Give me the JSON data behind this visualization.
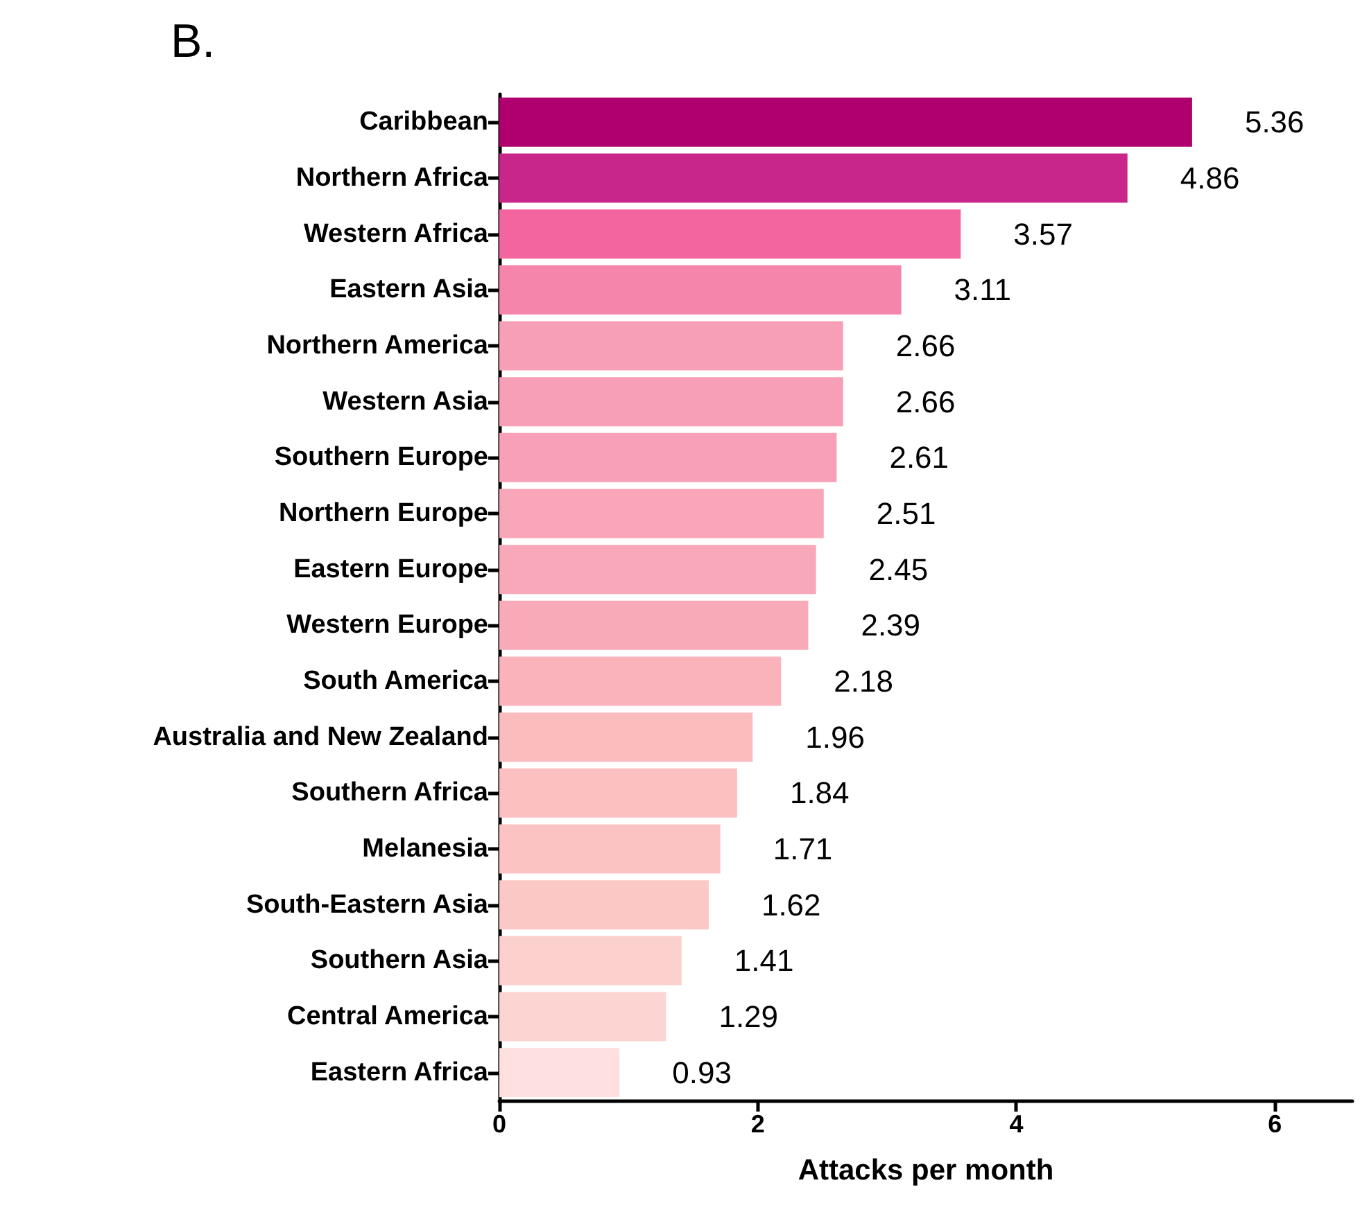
{
  "chart_data": {
    "type": "bar",
    "orientation": "horizontal",
    "title": "B.",
    "xlabel": "Attacks per month",
    "categories": [
      "Caribbean",
      "Northern Africa",
      "Western Africa",
      "Eastern Asia",
      "Northern America",
      "Western Asia",
      "Southern Europe",
      "Northern Europe",
      "Eastern Europe",
      "Western Europe",
      "South America",
      "Australia and New Zealand",
      "Southern Africa",
      "Melanesia",
      "South-Eastern Asia",
      "Southern Asia",
      "Central America",
      "Eastern Africa"
    ],
    "values": [
      5.36,
      4.86,
      3.57,
      3.11,
      2.66,
      2.66,
      2.61,
      2.51,
      2.45,
      2.39,
      2.18,
      1.96,
      1.84,
      1.71,
      1.62,
      1.41,
      1.29,
      0.93
    ],
    "colors": [
      "#b0006f",
      "#c9268a",
      "#f3659f",
      "#f585aa",
      "#f79fb6",
      "#f79fb6",
      "#f8a0b7",
      "#f9a6b8",
      "#f9a8b9",
      "#f9aab9",
      "#fab2bb",
      "#fbbcbe",
      "#fbc0bf",
      "#fbc4c3",
      "#fbc8c6",
      "#fcd0cd",
      "#fcd4d2",
      "#fde0df"
    ],
    "xlim": [
      0,
      6.6
    ],
    "xticks": [
      0,
      2,
      4,
      6
    ],
    "data_labels": true,
    "grid": false
  }
}
